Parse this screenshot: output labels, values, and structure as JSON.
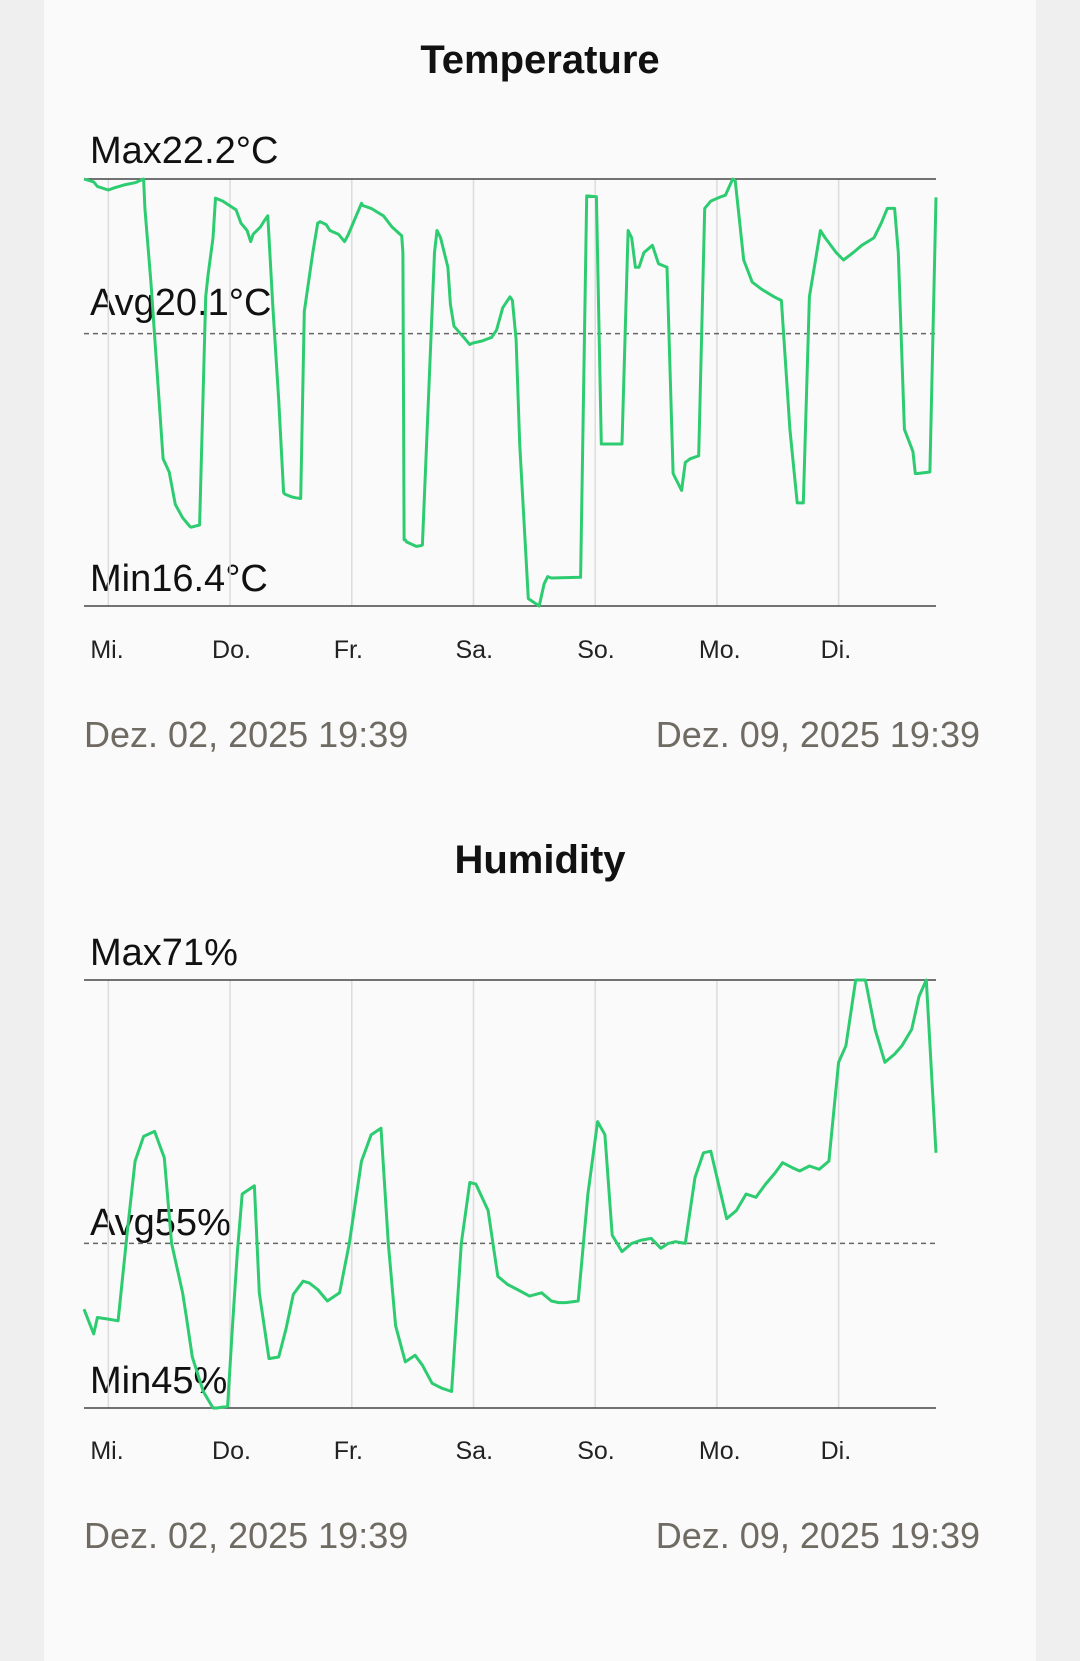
{
  "charts": [
    {
      "title": "Temperature",
      "max_label": "Max",
      "max_value": "22.2°C",
      "avg_label": "Avg",
      "avg_value": "20.1°C",
      "min_label": "Min",
      "min_value": "16.4°C",
      "days": [
        "Mi.",
        "Do.",
        "Fr.",
        "Sa.",
        "So.",
        "Mo.",
        "Di."
      ],
      "start_date": "Dez. 02, 2025 19:39",
      "end_date": "Dez. 09, 2025 19:39"
    },
    {
      "title": "Humidity",
      "max_label": "Max",
      "max_value": "71%",
      "avg_label": "Avg",
      "avg_value": "55%",
      "min_label": "Min",
      "min_value": "45%",
      "days": [
        "Mi.",
        "Do.",
        "Fr.",
        "Sa.",
        "So.",
        "Mo.",
        "Di."
      ],
      "start_date": "Dez. 02, 2025 19:39",
      "end_date": "Dez. 09, 2025 19:39"
    }
  ],
  "chart_data": [
    {
      "type": "line",
      "title": "Temperature",
      "line_color": "#2ecc71",
      "ylim": [
        16.4,
        22.2
      ],
      "max": 22.2,
      "avg": 20.1,
      "min": 16.4,
      "x_range": [
        "Dez. 02, 2025 19:39",
        "Dez. 09, 2025 19:39"
      ],
      "x_days": [
        0.2,
        1.2,
        2.2,
        3.2,
        4.2,
        5.2,
        6.2
      ],
      "series": [
        {
          "x": [
            0,
            0.08,
            0.11,
            0.2,
            0.25,
            0.33,
            0.42,
            0.49,
            0.5,
            0.55,
            0.6,
            0.65,
            0.7,
            0.75,
            0.81,
            0.87,
            0.88,
            0.95,
            1.0,
            1.02,
            1.06,
            1.08,
            1.14,
            1.25,
            1.29,
            1.34,
            1.37,
            1.39,
            1.45,
            1.48,
            1.51,
            1.55,
            1.6,
            1.64,
            1.65,
            1.68,
            1.71,
            1.74,
            1.78,
            1.81,
            1.88,
            1.92,
            1.94,
            1.99,
            2.02,
            2.09,
            2.14,
            2.17,
            2.28,
            2.29,
            2.36,
            2.46,
            2.53,
            2.61,
            2.62,
            2.63,
            2.64,
            2.65,
            2.73,
            2.77,
            2.78,
            2.88,
            2.9,
            2.93,
            2.99,
            3.01,
            3.04,
            3.12,
            3.17,
            3.19,
            3.27,
            3.35,
            3.39,
            3.44,
            3.5,
            3.52,
            3.55,
            3.58,
            3.65,
            3.74,
            3.78,
            3.81,
            3.84,
            4.08,
            4.13,
            4.21,
            4.25,
            4.31,
            4.36,
            4.42,
            4.47,
            4.5,
            4.53,
            4.56,
            4.6,
            4.67,
            4.72,
            4.79,
            4.84,
            4.91,
            4.94,
            4.98,
            5.05,
            5.1,
            5.15,
            5.22,
            5.27,
            5.33,
            5.35,
            5.42,
            5.49,
            5.57,
            5.67,
            5.73,
            5.8,
            5.86,
            5.91,
            5.96,
            6.05,
            6.09,
            6.18,
            6.24,
            6.32,
            6.39,
            6.49,
            6.55,
            6.6,
            6.66,
            6.69,
            6.74,
            6.81,
            6.83,
            6.85,
            6.95,
            7.0
          ],
          "y": [
            22.2,
            22.16,
            22.1,
            22.05,
            22.08,
            22.12,
            22.15,
            22.2,
            21.8,
            20.8,
            19.6,
            18.4,
            18.22,
            17.78,
            17.6,
            17.48,
            17.47,
            17.5,
            20.6,
            20.9,
            21.4,
            21.94,
            21.9,
            21.78,
            21.6,
            21.5,
            21.35,
            21.45,
            21.55,
            21.63,
            21.7,
            20.5,
            19.2,
            17.94,
            17.92,
            17.9,
            17.88,
            17.87,
            17.86,
            20.4,
            21.2,
            21.6,
            21.62,
            21.58,
            21.5,
            21.45,
            21.35,
            21.44,
            21.87,
            21.84,
            21.8,
            21.7,
            21.55,
            21.43,
            21.2,
            17.3,
            17.3,
            17.27,
            17.21,
            17.22,
            17.23,
            21.2,
            21.5,
            21.4,
            21.0,
            20.5,
            20.2,
            20.05,
            19.95,
            19.97,
            20.0,
            20.05,
            20.15,
            20.45,
            20.6,
            20.55,
            20.02,
            18.6,
            16.5,
            16.4,
            16.7,
            16.8,
            16.78,
            16.79,
            21.97,
            21.96,
            18.6,
            18.6,
            18.6,
            18.6,
            21.5,
            21.4,
            21.0,
            21.0,
            21.2,
            21.3,
            21.05,
            21.0,
            18.2,
            17.97,
            18.35,
            18.4,
            18.44,
            21.8,
            21.9,
            21.95,
            21.98,
            22.2,
            22.18,
            21.1,
            20.8,
            20.7,
            20.6,
            20.55,
            18.8,
            17.8,
            17.8,
            20.6,
            21.5,
            21.4,
            21.2,
            21.1,
            21.2,
            21.3,
            21.4,
            21.6,
            21.8,
            21.8,
            21.2,
            18.8,
            18.5,
            18.2,
            18.2,
            18.22,
            21.95
          ]
        }
      ]
    },
    {
      "type": "line",
      "title": "Humidity",
      "line_color": "#2ecc71",
      "ylim": [
        45,
        71
      ],
      "max": 71,
      "avg": 55,
      "min": 45,
      "x_range": [
        "Dez. 02, 2025 19:39",
        "Dez. 09, 2025 19:39"
      ],
      "x_days": [
        0.2,
        1.2,
        2.2,
        3.2,
        4.2,
        5.2,
        6.2
      ],
      "series": [
        {
          "x": [
            0,
            0.08,
            0.11,
            0.2,
            0.28,
            0.36,
            0.42,
            0.49,
            0.58,
            0.66,
            0.72,
            0.81,
            0.84,
            0.89,
            0.98,
            1.06,
            1.09,
            1.18,
            1.22,
            1.26,
            1.3,
            1.4,
            1.44,
            1.52,
            1.6,
            1.66,
            1.72,
            1.8,
            1.85,
            1.92,
            2.0,
            2.1,
            2.18,
            2.28,
            2.36,
            2.44,
            2.5,
            2.56,
            2.64,
            2.72,
            2.78,
            2.86,
            2.94,
            3.02,
            3.1,
            3.17,
            3.22,
            3.32,
            3.4,
            3.48,
            3.56,
            3.66,
            3.76,
            3.84,
            3.9,
            3.96,
            4.06,
            4.14,
            4.22,
            4.28,
            4.34,
            4.42,
            4.5,
            4.58,
            4.66,
            4.74,
            4.8,
            4.86,
            4.94,
            5.02,
            5.09,
            5.15,
            5.22,
            5.28,
            5.36,
            5.44,
            5.52,
            5.6,
            5.68,
            5.74,
            5.82,
            5.88,
            5.96,
            6.04,
            6.12,
            6.2,
            6.26,
            6.34,
            6.42,
            6.5,
            6.58,
            6.66,
            6.72,
            6.8,
            6.86,
            6.92,
            7.0
          ],
          "y": [
            51.0,
            49.5,
            50.5,
            50.4,
            50.3,
            56.0,
            60.0,
            61.5,
            61.8,
            60.2,
            55.0,
            52.0,
            50.6,
            48.1,
            46.0,
            45.0,
            45.0,
            45.1,
            50.0,
            54.5,
            58.0,
            58.5,
            52.0,
            48.0,
            48.1,
            49.8,
            51.9,
            52.7,
            52.6,
            52.2,
            51.5,
            52.0,
            55.0,
            60.0,
            61.6,
            62.0,
            55.0,
            50.0,
            47.8,
            48.2,
            47.6,
            46.5,
            46.2,
            46.0,
            55.0,
            58.7,
            58.6,
            57.0,
            53.0,
            52.5,
            52.2,
            51.8,
            52.0,
            51.5,
            51.4,
            51.4,
            51.5,
            58.0,
            62.4,
            61.6,
            55.5,
            54.5,
            55.0,
            55.2,
            55.3,
            54.7,
            55.0,
            55.1,
            55.0,
            59.0,
            60.5,
            60.6,
            58.4,
            56.5,
            57.0,
            58.0,
            57.8,
            58.6,
            59.3,
            59.9,
            59.6,
            59.4,
            59.7,
            59.5,
            60.0,
            66.0,
            67.0,
            71.0,
            71.0,
            68.0,
            66.0,
            66.5,
            67.0,
            68.0,
            70.0,
            71.0,
            60.5
          ]
        }
      ]
    }
  ]
}
